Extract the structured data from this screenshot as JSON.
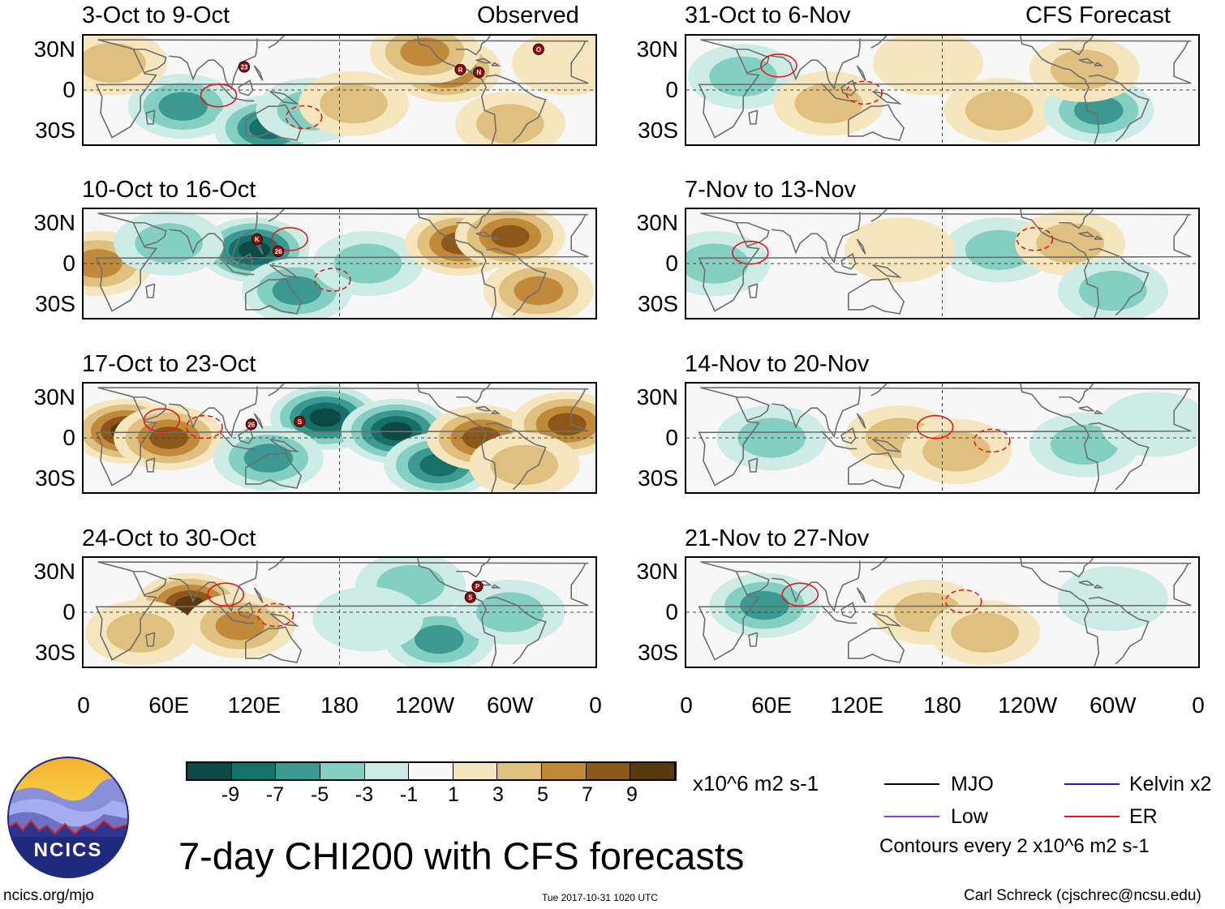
{
  "colorbar": {
    "colors": [
      "#0b4a44",
      "#15706a",
      "#3a9a92",
      "#83cfc2",
      "#cdece5",
      "#f7f7f7",
      "#f6e6be",
      "#dfc07e",
      "#c08a3a",
      "#8c5718",
      "#5a3a0c"
    ],
    "ticks": [
      "-9",
      "-7",
      "-5",
      "-3",
      "-1",
      "1",
      "3",
      "5",
      "7",
      "9"
    ],
    "units": "x10^6 m2 s-1"
  },
  "legend": {
    "items": [
      {
        "label": "MJO",
        "color": "#000000"
      },
      {
        "label": "Kelvin x2",
        "color": "#1a1adb"
      },
      {
        "label": "Low",
        "color": "#9b30d9"
      },
      {
        "label": "ER",
        "color": "#e31a1c"
      }
    ],
    "contour_note": "Contours every 2 x10^6 m2 s-1"
  },
  "main_title": "7-day CHI200 with CFS forecasts",
  "footer": {
    "url": "ncics.org/mjo",
    "timestamp": "Tue 2017-10-31 1020 UTC",
    "author": "Carl Schreck (cjschrec@ncsu.edu)"
  },
  "logo_text": "NCICS",
  "chart_data": {
    "type": "heatmap",
    "variable": "7-day CHI200 (200-hPa velocity potential) anomaly",
    "units": "x10^6 m2 s-1",
    "x_ticks": [
      "0",
      "60E",
      "120E",
      "180",
      "120W",
      "60W",
      "0"
    ],
    "x_values_deg": [
      0,
      60,
      120,
      180,
      240,
      300,
      360
    ],
    "y_ticks": [
      "30N",
      "0",
      "30S"
    ],
    "y_values_deg": [
      30,
      0,
      -30
    ],
    "ylim": [
      -40,
      40
    ],
    "color_levels": [
      -9,
      -7,
      -5,
      -3,
      -1,
      1,
      3,
      5,
      7,
      9
    ],
    "observed_label": "Observed",
    "forecast_label": "CFS Forecast",
    "observed_panels": [
      {
        "title": "3-Oct to 9-Oct",
        "storms": [
          {
            "label": "23",
            "lon": 113,
            "lat": 17
          },
          {
            "label": "R",
            "lon": 265,
            "lat": 15
          },
          {
            "label": "N",
            "lon": 278,
            "lat": 13
          },
          {
            "label": "O",
            "lon": 320,
            "lat": 30
          }
        ],
        "blobs": [
          {
            "lon": 70,
            "lat": -12,
            "v": -5
          },
          {
            "lon": 130,
            "lat": -28,
            "v": -7
          },
          {
            "lon": 160,
            "lat": -15,
            "v": -3
          },
          {
            "lon": 255,
            "lat": 15,
            "v": 7
          },
          {
            "lon": 240,
            "lat": 28,
            "v": 5
          },
          {
            "lon": 300,
            "lat": -25,
            "v": 3
          },
          {
            "lon": 20,
            "lat": 20,
            "v": 3
          },
          {
            "lon": 340,
            "lat": 20,
            "v": 1
          },
          {
            "lon": 190,
            "lat": -10,
            "v": 3
          }
        ]
      },
      {
        "title": "10-Oct to 16-Oct",
        "storms": [
          {
            "label": "K",
            "lon": 122,
            "lat": 18
          },
          {
            "label": "26",
            "lon": 137,
            "lat": 9
          }
        ],
        "blobs": [
          {
            "lon": 120,
            "lat": 10,
            "v": -9
          },
          {
            "lon": 150,
            "lat": -20,
            "v": -5
          },
          {
            "lon": 200,
            "lat": 0,
            "v": -3
          },
          {
            "lon": 265,
            "lat": 15,
            "v": 7
          },
          {
            "lon": 300,
            "lat": 20,
            "v": 7
          },
          {
            "lon": 320,
            "lat": -20,
            "v": 5
          },
          {
            "lon": 10,
            "lat": 0,
            "v": 5
          },
          {
            "lon": 60,
            "lat": 15,
            "v": -3
          }
        ]
      },
      {
        "title": "17-Oct to 23-Oct",
        "storms": [
          {
            "label": "26",
            "lon": 118,
            "lat": 10
          },
          {
            "label": "S",
            "lon": 152,
            "lat": 12
          }
        ],
        "blobs": [
          {
            "lon": 30,
            "lat": 5,
            "v": 9
          },
          {
            "lon": 60,
            "lat": 0,
            "v": 7
          },
          {
            "lon": 170,
            "lat": 15,
            "v": -9
          },
          {
            "lon": 220,
            "lat": 5,
            "v": -9
          },
          {
            "lon": 250,
            "lat": -20,
            "v": -7
          },
          {
            "lon": 130,
            "lat": -15,
            "v": -5
          },
          {
            "lon": 280,
            "lat": 0,
            "v": 7
          },
          {
            "lon": 340,
            "lat": 10,
            "v": 7
          },
          {
            "lon": 310,
            "lat": -20,
            "v": 3
          }
        ]
      },
      {
        "title": "24-Oct to 30-Oct",
        "storms": [
          {
            "label": "P",
            "lon": 277,
            "lat": 19
          },
          {
            "label": "S",
            "lon": 272,
            "lat": 11
          }
        ],
        "blobs": [
          {
            "lon": 75,
            "lat": 5,
            "v": 9
          },
          {
            "lon": 110,
            "lat": -10,
            "v": 5
          },
          {
            "lon": 40,
            "lat": -15,
            "v": 3
          },
          {
            "lon": 250,
            "lat": -20,
            "v": -5
          },
          {
            "lon": 300,
            "lat": 0,
            "v": -3
          },
          {
            "lon": 230,
            "lat": 20,
            "v": -3
          },
          {
            "lon": 200,
            "lat": -5,
            "v": -1
          }
        ]
      }
    ],
    "forecast_panels": [
      {
        "title": "31-Oct to 6-Nov",
        "blobs": [
          {
            "lon": 40,
            "lat": 10,
            "v": -3
          },
          {
            "lon": 100,
            "lat": -10,
            "v": 3
          },
          {
            "lon": 170,
            "lat": 20,
            "v": 1
          },
          {
            "lon": 220,
            "lat": -15,
            "v": 3
          },
          {
            "lon": 290,
            "lat": -15,
            "v": -5
          },
          {
            "lon": 280,
            "lat": 15,
            "v": 3
          }
        ]
      },
      {
        "title": "7-Nov to 13-Nov",
        "blobs": [
          {
            "lon": 20,
            "lat": 0,
            "v": -3
          },
          {
            "lon": 220,
            "lat": 10,
            "v": -3
          },
          {
            "lon": 270,
            "lat": 15,
            "v": 3
          },
          {
            "lon": 300,
            "lat": -20,
            "v": -3
          },
          {
            "lon": 150,
            "lat": 10,
            "v": 1
          }
        ]
      },
      {
        "title": "14-Nov to 20-Nov",
        "blobs": [
          {
            "lon": 150,
            "lat": 0,
            "v": 3
          },
          {
            "lon": 190,
            "lat": -10,
            "v": 3
          },
          {
            "lon": 60,
            "lat": 0,
            "v": -3
          },
          {
            "lon": 280,
            "lat": -5,
            "v": -3
          },
          {
            "lon": 330,
            "lat": 10,
            "v": -1
          }
        ]
      },
      {
        "title": "21-Nov to 27-Nov",
        "blobs": [
          {
            "lon": 55,
            "lat": 5,
            "v": -5
          },
          {
            "lon": 170,
            "lat": 0,
            "v": 3
          },
          {
            "lon": 210,
            "lat": -15,
            "v": 3
          },
          {
            "lon": 300,
            "lat": 10,
            "v": -1
          }
        ]
      }
    ]
  }
}
